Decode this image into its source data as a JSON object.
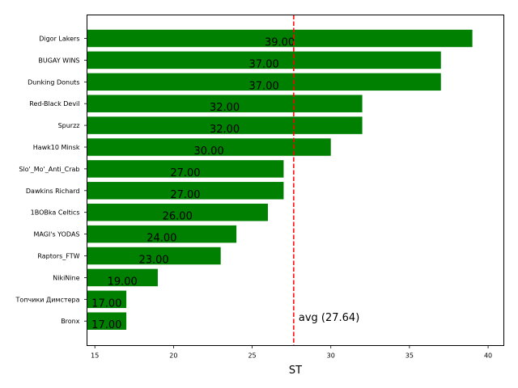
{
  "chart_data": {
    "type": "bar",
    "orientation": "horizontal",
    "categories": [
      "Digor Lakers",
      "BUGAY WINS",
      "Dunking Donuts",
      "Red-Black Devil",
      "Spurzz",
      "Hawk10 Minsk",
      "Slo'_Mo'_Anti_Crab",
      "Dawkins Richard",
      "1BOBka Celtics",
      "MAGI's YODAS",
      "Raptors_FTW",
      "NikiNine",
      "Топчики Димстера",
      "Bronx"
    ],
    "values": [
      39,
      37,
      37,
      32,
      32,
      30,
      27,
      27,
      26,
      24,
      23,
      19,
      17,
      17
    ],
    "data_labels": [
      "39.00",
      "37.00",
      "37.00",
      "32.00",
      "32.00",
      "30.00",
      "27.00",
      "27.00",
      "26.00",
      "24.00",
      "23.00",
      "19.00",
      "17.00",
      "17.00"
    ],
    "xlabel": "ST",
    "xlim": [
      14.5,
      41
    ],
    "xticks": [
      15,
      20,
      25,
      30,
      35,
      40
    ],
    "bar_color": "#008000",
    "reference_line": {
      "value": 27.64,
      "label": "avg (27.64)",
      "color": "#ff0000",
      "style": "dashed"
    },
    "grid": false
  }
}
